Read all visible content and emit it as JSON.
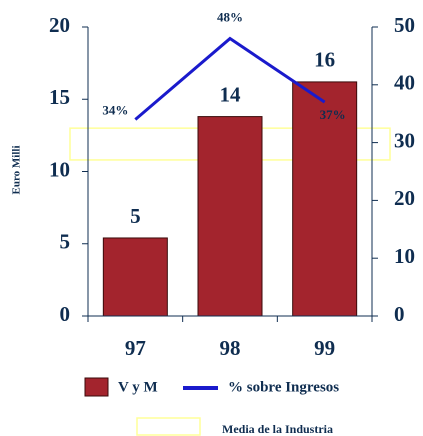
{
  "chart_data": {
    "type": "bar",
    "y_label": "Euro Milli",
    "categories": [
      "97",
      "98",
      "99"
    ],
    "series": [
      {
        "name": "V y M",
        "color": "#a3242d",
        "values": [
          5.4,
          13.8,
          16.2
        ],
        "value_labels": [
          "5",
          "14",
          "16"
        ]
      },
      {
        "name": "% sobre Ingresos",
        "color": "#1a1acc",
        "axis": "y2",
        "type": "line",
        "values": [
          34,
          48,
          37
        ],
        "value_labels": [
          "34%",
          "48%",
          "37%"
        ]
      }
    ],
    "band": {
      "name": "Media de la Industria",
      "color": "#ffff99",
      "range": [
        27,
        32.5
      ]
    },
    "ylim": [
      0,
      20
    ],
    "yticks": [
      0,
      5,
      10,
      15,
      20
    ],
    "y2lim": [
      0,
      50
    ],
    "y2ticks": [
      0,
      10,
      20,
      30,
      40,
      50
    ]
  }
}
